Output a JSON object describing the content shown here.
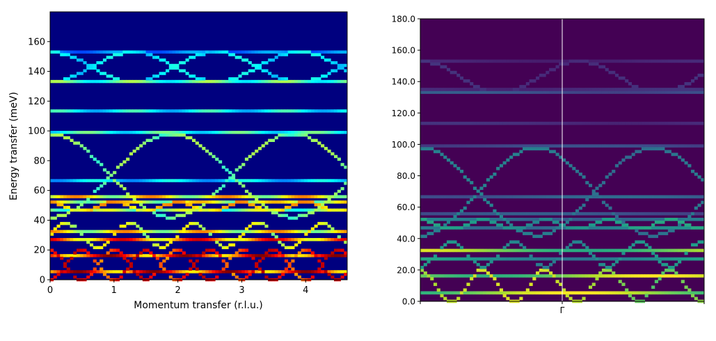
{
  "chart_data": [
    {
      "type": "heatmap",
      "title": "",
      "xlabel": "Momentum transfer (r.l.u.)",
      "ylabel": "Energy transfer (meV)",
      "xlim": [
        0,
        4.65
      ],
      "ylim": [
        0,
        180
      ],
      "xticks": [
        "0",
        "1",
        "2",
        "3",
        "4"
      ],
      "xtick_values": [
        0,
        1,
        2,
        3,
        4
      ],
      "yticks": [
        "0",
        "20",
        "40",
        "60",
        "80",
        "100",
        "120",
        "140",
        "160"
      ],
      "ytick_values": [
        0,
        20,
        40,
        60,
        80,
        100,
        120,
        140,
        160
      ],
      "colormap": "jet",
      "background_color": "#00007f",
      "flat_bands_meV": [
        {
          "energy": 5.5,
          "intensity": 1.0
        },
        {
          "energy": 15.5,
          "intensity": 1.0
        },
        {
          "energy": 27,
          "intensity": 0.92
        },
        {
          "energy": 33,
          "intensity": 0.75
        },
        {
          "energy": 47,
          "intensity": 0.6
        },
        {
          "energy": 52,
          "intensity": 0.7
        },
        {
          "energy": 56,
          "intensity": 0.75
        },
        {
          "energy": 67,
          "intensity": 0.4
        },
        {
          "energy": 99,
          "intensity": 0.5
        },
        {
          "energy": 114,
          "intensity": 0.45
        },
        {
          "energy": 133,
          "intensity": 0.55
        },
        {
          "energy": 153,
          "intensity": 0.3
        }
      ],
      "dispersive_branches_meV": [
        {
          "center": 10,
          "amplitude": 10,
          "period": 1.0,
          "phase": 0.0,
          "intensity": 0.95
        },
        {
          "center": 10,
          "amplitude": 10,
          "period": 1.0,
          "phase": 0.5,
          "intensity": 0.95
        },
        {
          "center": 30,
          "amplitude": 8,
          "period": 1.0,
          "phase": 0.25,
          "intensity": 0.65
        },
        {
          "center": 49,
          "amplitude": 3,
          "period": 1.0,
          "phase": 0.0,
          "intensity": 0.75
        },
        {
          "center": 70,
          "amplitude": 28,
          "period": 3.8,
          "phase": 0.0,
          "intensity": 0.55
        },
        {
          "center": 70,
          "amplitude": 28,
          "period": 3.8,
          "phase": 1.9,
          "intensity": 0.55
        },
        {
          "center": 143,
          "amplitude": 10,
          "period": 2.6,
          "phase": 0.0,
          "intensity": 0.4
        },
        {
          "center": 143,
          "amplitude": 10,
          "period": 2.6,
          "phase": 1.3,
          "intensity": 0.4
        }
      ]
    },
    {
      "type": "heatmap",
      "title": "",
      "xlabel": "",
      "ylabel": "",
      "xlim": [
        0,
        1
      ],
      "ylim": [
        0,
        180
      ],
      "xticks": [
        "Γ"
      ],
      "yticks": [
        "0.0",
        "20.0",
        "40.0",
        "60.0",
        "80.0",
        "100.0",
        "120.0",
        "140.0",
        "160.0",
        "180.0"
      ],
      "ytick_values": [
        0,
        20,
        40,
        60,
        80,
        100,
        120,
        140,
        160,
        180
      ],
      "colormap": "viridis",
      "background_color": "#440154",
      "vertical_marker": "Γ",
      "flat_bands_meV": [
        {
          "energy": 5,
          "intensity": 1.0
        },
        {
          "energy": 16,
          "intensity": 1.0
        },
        {
          "energy": 27,
          "intensity": 0.6
        },
        {
          "energy": 33,
          "intensity": 0.95
        },
        {
          "energy": 47,
          "intensity": 0.5
        },
        {
          "energy": 52,
          "intensity": 0.45
        },
        {
          "energy": 56,
          "intensity": 0.3
        },
        {
          "energy": 67,
          "intensity": 0.35
        },
        {
          "energy": 99,
          "intensity": 0.25
        },
        {
          "energy": 114,
          "intensity": 0.15
        },
        {
          "energy": 133,
          "intensity": 0.3
        },
        {
          "energy": 135,
          "intensity": 0.15
        },
        {
          "energy": 153,
          "intensity": 0.12
        }
      ],
      "dispersive_branches_meV": [
        {
          "center": 10,
          "amplitude": 10,
          "period": 0.22,
          "phase": 0.0,
          "intensity": 0.95
        },
        {
          "center": 30,
          "amplitude": 8,
          "period": 0.22,
          "phase": 0.11,
          "intensity": 0.55
        },
        {
          "center": 49,
          "amplitude": 3,
          "period": 0.22,
          "phase": 0.0,
          "intensity": 0.6
        },
        {
          "center": 70,
          "amplitude": 28,
          "period": 0.82,
          "phase": 0.0,
          "intensity": 0.45
        },
        {
          "center": 70,
          "amplitude": 28,
          "period": 0.82,
          "phase": 0.41,
          "intensity": 0.45
        },
        {
          "center": 143,
          "amplitude": 10,
          "period": 0.56,
          "phase": 0.0,
          "intensity": 0.15
        }
      ]
    }
  ]
}
